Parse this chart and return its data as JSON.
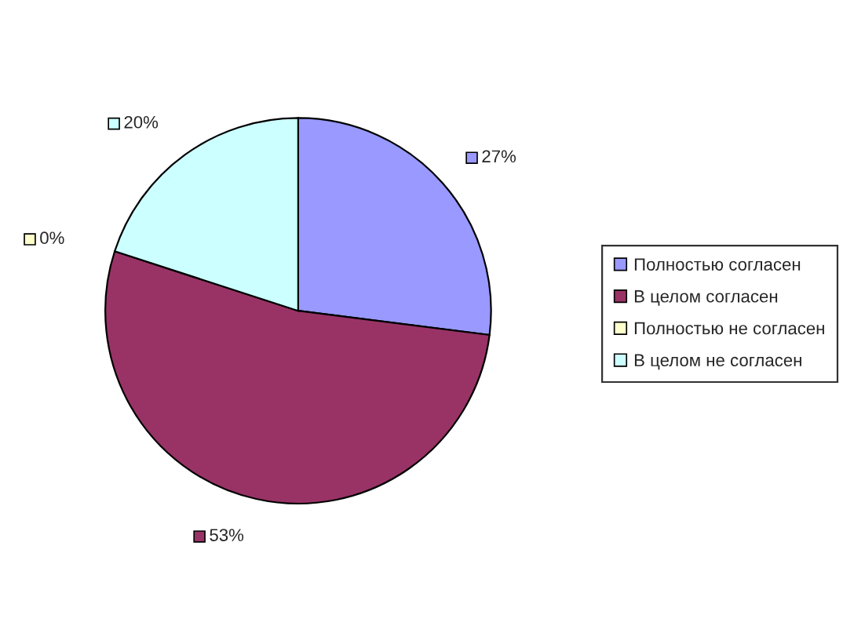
{
  "chart_data": {
    "type": "pie",
    "categories": [
      "Полностью согласен",
      "В целом согласен",
      "Полностью не согласен",
      "В целом не согласен"
    ],
    "values": [
      27,
      53,
      0,
      20
    ],
    "colors": [
      "#9999ff",
      "#993366",
      "#ffffcc",
      "#ccffff"
    ],
    "value_labels": [
      "27%",
      "53%",
      "0%",
      "20%"
    ],
    "legend": "right"
  }
}
